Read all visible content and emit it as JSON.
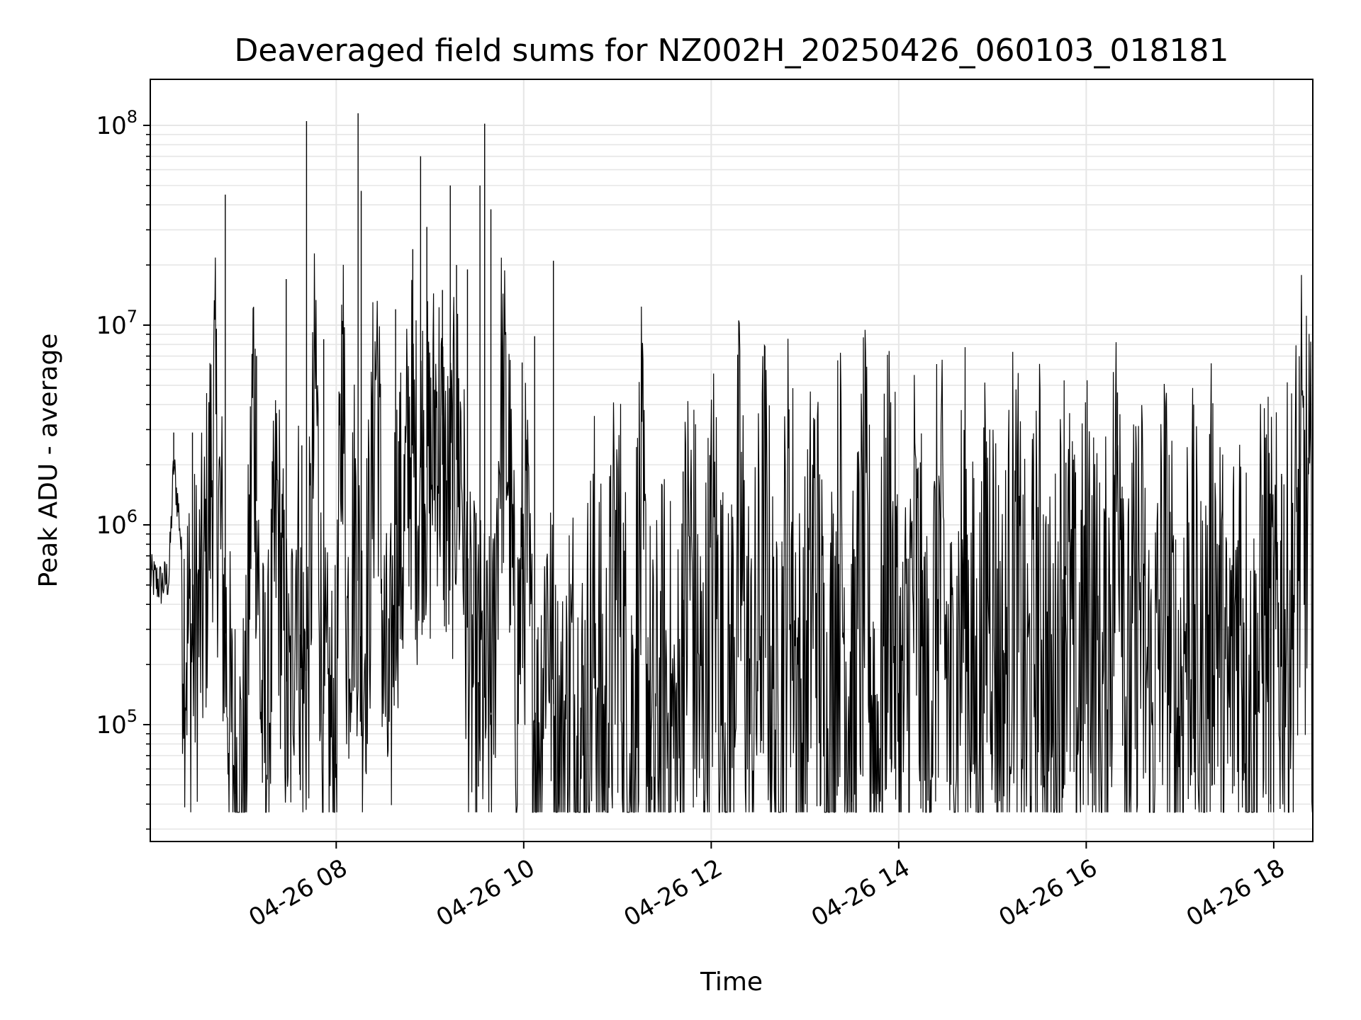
{
  "chart_data": {
    "type": "line",
    "title": "Deaveraged field sums for NZ002H_20250426_060103_018181",
    "xlabel": "Time",
    "ylabel": "Peak ADU - average",
    "yscale": "log",
    "ylim": [
      26000,
      170000000
    ],
    "xlim": [
      "2025-04-26 06:01",
      "2025-04-26 18:25"
    ],
    "grid": true,
    "line_color": "#000000",
    "grid_color": "#e6e6e6",
    "x_ticks": [
      {
        "label": "04-26 08",
        "value": "2025-04-26 08:00"
      },
      {
        "label": "04-26 10",
        "value": "2025-04-26 10:00"
      },
      {
        "label": "04-26 12",
        "value": "2025-04-26 12:00"
      },
      {
        "label": "04-26 14",
        "value": "2025-04-26 14:00"
      },
      {
        "label": "04-26 16",
        "value": "2025-04-26 16:00"
      },
      {
        "label": "04-26 18",
        "value": "2025-04-26 18:00"
      }
    ],
    "y_ticks": [
      {
        "base": "10",
        "exp": "5",
        "value": 100000
      },
      {
        "base": "10",
        "exp": "6",
        "value": 1000000
      },
      {
        "base": "10",
        "exp": "7",
        "value": 10000000
      },
      {
        "base": "10",
        "exp": "8",
        "value": 100000000
      }
    ],
    "series": [
      {
        "x": [
          "2025-04-26 06:01",
          "2025-04-26 06:08",
          "2025-04-26 06:13",
          "2025-04-26 06:16",
          "2025-04-26 06:20",
          "2025-04-26 06:23",
          "2025-04-26 06:28",
          "2025-04-26 06:35",
          "2025-04-26 06:42",
          "2025-04-26 06:50",
          "2025-04-26 06:53",
          "2025-04-26 06:56",
          "2025-04-26 07:02",
          "2025-04-26 07:07",
          "2025-04-26 07:12",
          "2025-04-26 07:16",
          "2025-04-26 07:22",
          "2025-04-26 07:26",
          "2025-04-26 07:30",
          "2025-04-26 07:35",
          "2025-04-26 07:38",
          "2025-04-26 07:42",
          "2025-04-26 07:47",
          "2025-04-26 07:51",
          "2025-04-26 07:56",
          "2025-04-26 08:00",
          "2025-04-26 08:04",
          "2025-04-26 08:07",
          "2025-04-26 08:12",
          "2025-04-26 08:17",
          "2025-04-26 08:22",
          "2025-04-26 08:26",
          "2025-04-26 08:30",
          "2025-04-26 08:34",
          "2025-04-26 08:38",
          "2025-04-26 08:43",
          "2025-04-26 08:47",
          "2025-04-26 08:52",
          "2025-04-26 08:56",
          "2025-04-26 09:00",
          "2025-04-26 09:04",
          "2025-04-26 09:08",
          "2025-04-26 09:12",
          "2025-04-26 09:16",
          "2025-04-26 09:20",
          "2025-04-26 09:23",
          "2025-04-26 09:26",
          "2025-04-26 09:30",
          "2025-04-26 09:33",
          "2025-04-26 09:36",
          "2025-04-26 09:40",
          "2025-04-26 09:45",
          "2025-04-26 09:50",
          "2025-04-26 09:55",
          "2025-04-26 09:59",
          "2025-04-26 10:02",
          "2025-04-26 10:05",
          "2025-04-26 10:09",
          "2025-04-26 10:15",
          "2025-04-26 10:20",
          "2025-04-26 10:25",
          "2025-04-26 10:30",
          "2025-04-26 10:38",
          "2025-04-26 10:45",
          "2025-04-26 10:52",
          "2025-04-26 11:00",
          "2025-04-26 11:08",
          "2025-04-26 11:15",
          "2025-04-26 11:22",
          "2025-04-26 11:30",
          "2025-04-26 11:38",
          "2025-04-26 11:46",
          "2025-04-26 11:54",
          "2025-04-26 12:02",
          "2025-04-26 12:10",
          "2025-04-26 12:18",
          "2025-04-26 12:26",
          "2025-04-26 12:34",
          "2025-04-26 12:42",
          "2025-04-26 12:50",
          "2025-04-26 12:58",
          "2025-04-26 13:06",
          "2025-04-26 13:14",
          "2025-04-26 13:22",
          "2025-04-26 13:30",
          "2025-04-26 13:38",
          "2025-04-26 13:46",
          "2025-04-26 13:54",
          "2025-04-26 14:02",
          "2025-04-26 14:10",
          "2025-04-26 14:18",
          "2025-04-26 14:26",
          "2025-04-26 14:34",
          "2025-04-26 14:42",
          "2025-04-26 14:50",
          "2025-04-26 14:58",
          "2025-04-26 15:06",
          "2025-04-26 15:14",
          "2025-04-26 15:22",
          "2025-04-26 15:30",
          "2025-04-26 15:38",
          "2025-04-26 15:46",
          "2025-04-26 15:54",
          "2025-04-26 16:02",
          "2025-04-26 16:10",
          "2025-04-26 16:18",
          "2025-04-26 16:22",
          "2025-04-26 16:26",
          "2025-04-26 16:34",
          "2025-04-26 16:42",
          "2025-04-26 16:50",
          "2025-04-26 16:58",
          "2025-04-26 17:06",
          "2025-04-26 17:14",
          "2025-04-26 17:22",
          "2025-04-26 17:30",
          "2025-04-26 17:38",
          "2025-04-26 17:46",
          "2025-04-26 17:54",
          "2025-04-26 18:00",
          "2025-04-26 18:06",
          "2025-04-26 18:10",
          "2025-04-26 18:14",
          "2025-04-26 18:18",
          "2025-04-26 18:22",
          "2025-04-26 18:25"
        ],
        "y": [
          550000,
          500000,
          550000,
          2000000,
          1000000,
          300000,
          250000,
          400000,
          3500000,
          200000,
          80000,
          55000,
          60000,
          6500000,
          120000,
          80000,
          1200000,
          300000,
          90000,
          1000000,
          150000,
          200000,
          6500000,
          120000,
          90000,
          80000,
          9000000,
          300000,
          1000000,
          200000,
          800000,
          9000000,
          250000,
          80000,
          1000000,
          800000,
          3000000,
          1500000,
          2500000,
          1500000,
          4000000,
          2000000,
          1000000,
          2000000,
          2500000,
          400000,
          180000,
          170000,
          150000,
          130000,
          110000,
          4000000,
          2500000,
          130000,
          600000,
          800000,
          150000,
          70000,
          500000,
          90000,
          80000,
          150000,
          70000,
          300000,
          65000,
          700000,
          60000,
          900000,
          55000,
          150000,
          60000,
          800000,
          90000,
          700000,
          65000,
          900000,
          80000,
          900000,
          60000,
          1000000,
          70000,
          900000,
          60000,
          800000,
          85000,
          700000,
          65000,
          900000,
          80000,
          600000,
          75000,
          700000,
          85000,
          600000,
          90000,
          800000,
          120000,
          700000,
          100000,
          500000,
          80000,
          700000,
          120000,
          600000,
          100000,
          800000,
          4000000,
          90000,
          500000,
          80000,
          600000,
          90000,
          500000,
          100000,
          700000,
          90000,
          600000,
          80000,
          500000,
          200000,
          400000,
          300000,
          700000,
          1200000,
          900000,
          400000
        ]
      }
    ],
    "spikes": [
      {
        "x": "2025-04-26 06:49",
        "y": 45000000
      },
      {
        "x": "2025-04-26 07:09",
        "y": 7000000
      },
      {
        "x": "2025-04-26 07:28",
        "y": 17000000
      },
      {
        "x": "2025-04-26 07:38",
        "y": 2500000
      },
      {
        "x": "2025-04-26 07:41",
        "y": 105000000
      },
      {
        "x": "2025-04-26 07:52",
        "y": 8500000
      },
      {
        "x": "2025-04-26 08:04",
        "y": 10500000
      },
      {
        "x": "2025-04-26 08:14",
        "y": 115000000
      },
      {
        "x": "2025-04-26 08:16",
        "y": 47000000
      },
      {
        "x": "2025-04-26 08:38",
        "y": 12000000
      },
      {
        "x": "2025-04-26 08:49",
        "y": 24000000
      },
      {
        "x": "2025-04-26 08:54",
        "y": 70000000
      },
      {
        "x": "2025-04-26 08:58",
        "y": 31000000
      },
      {
        "x": "2025-04-26 09:08",
        "y": 15000000
      },
      {
        "x": "2025-04-26 09:13",
        "y": 50000000
      },
      {
        "x": "2025-04-26 09:17",
        "y": 20000000
      },
      {
        "x": "2025-04-26 09:24",
        "y": 19000000
      },
      {
        "x": "2025-04-26 09:32",
        "y": 50000000
      },
      {
        "x": "2025-04-26 09:35",
        "y": 102000000
      },
      {
        "x": "2025-04-26 09:39",
        "y": 38000000
      },
      {
        "x": "2025-04-26 09:59",
        "y": 6500000
      },
      {
        "x": "2025-04-26 10:07",
        "y": 8800000
      },
      {
        "x": "2025-04-26 10:19",
        "y": 21000000
      },
      {
        "x": "2025-04-26 11:42",
        "y": 1850000
      },
      {
        "x": "2025-04-26 14:56",
        "y": 2050000
      },
      {
        "x": "2025-04-26 15:47",
        "y": 2050000
      },
      {
        "x": "2025-04-26 16:20",
        "y": 4600000
      },
      {
        "x": "2025-04-26 18:05",
        "y": 1800000
      },
      {
        "x": "2025-04-26 06:16",
        "y": 2900000
      },
      {
        "x": "2025-04-26 06:28",
        "y": 2900000
      }
    ],
    "dips": [
      {
        "x": "2025-04-26 06:55",
        "y": 45000
      },
      {
        "x": "2025-04-26 07:37",
        "y": 47000
      },
      {
        "x": "2025-04-26 09:31",
        "y": 49000
      },
      {
        "x": "2025-04-26 11:22",
        "y": 42000
      },
      {
        "x": "2025-04-26 13:30",
        "y": 41000
      },
      {
        "x": "2025-04-26 15:45",
        "y": 43000
      },
      {
        "x": "2025-04-26 17:58",
        "y": 40000
      }
    ]
  }
}
